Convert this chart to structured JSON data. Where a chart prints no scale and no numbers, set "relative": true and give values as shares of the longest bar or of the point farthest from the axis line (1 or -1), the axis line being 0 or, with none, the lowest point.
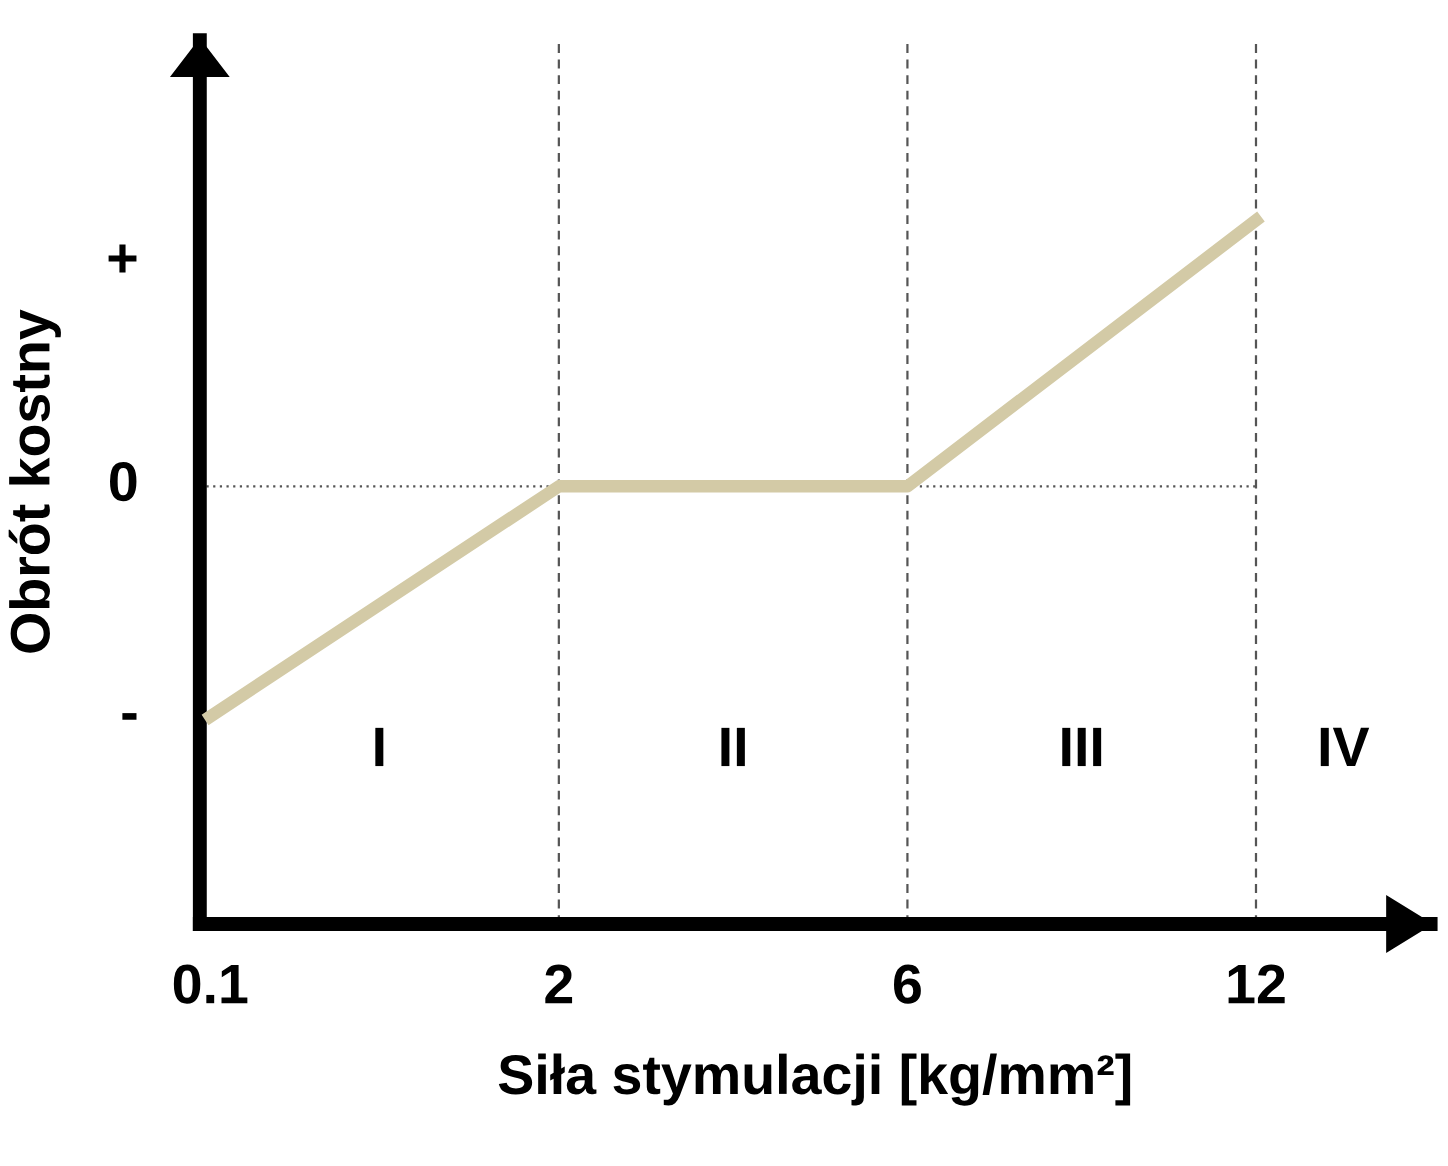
{
  "chart_data": {
    "type": "line",
    "xlabel": "Siła stymulacji [kg/mm²]",
    "ylabel": "Obrót kostny",
    "relative": true,
    "categories": [
      "0.1",
      "2",
      "6",
      "12"
    ],
    "series": [
      {
        "color": "#d3caa6",
        "values": [
          0.295,
          0.622,
          0.622,
          1
        ]
      }
    ],
    "ref_lines": [
      {
        "axis": "x",
        "value": "2",
        "line_style": "dashed",
        "color": "#555555"
      },
      {
        "axis": "x",
        "value": "6",
        "line_style": "dashed",
        "color": "#555555"
      },
      {
        "axis": "x",
        "value": "12",
        "line_style": "dashed",
        "color": "#555555"
      },
      {
        "axis": "y",
        "value": 0.622,
        "line_style": "dotted",
        "color": "#555555"
      }
    ],
    "annotations": [
      "+",
      "0",
      "-",
      "I",
      "II",
      "III",
      "IV"
    ],
    "grid": false,
    "legend": false,
    "marker": "none",
    "line_style": "solid"
  }
}
